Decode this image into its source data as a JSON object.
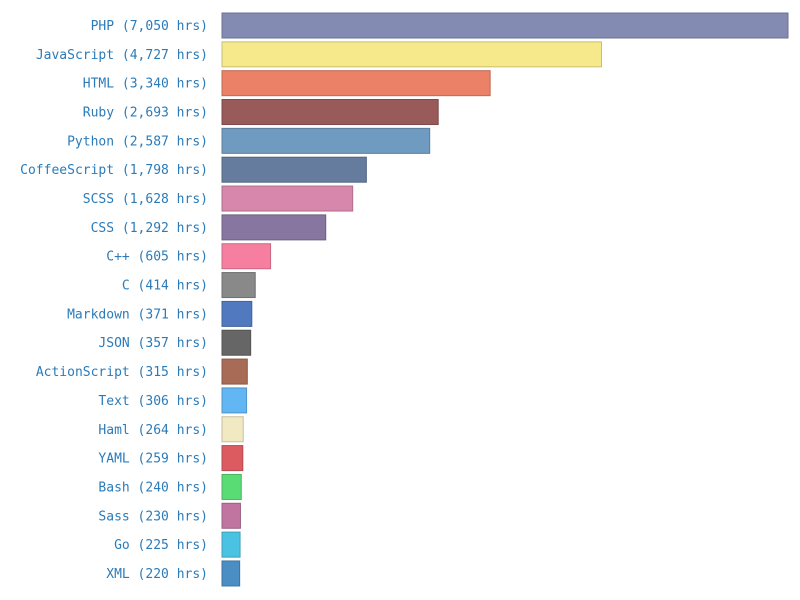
{
  "chart_data": {
    "type": "bar",
    "orientation": "horizontal",
    "title": "",
    "xlabel": "",
    "ylabel": "",
    "unit_label": "hrs",
    "xlim": [
      0,
      7050
    ],
    "grid": false,
    "label_color": "#2b7bb9",
    "categories": [
      "PHP",
      "JavaScript",
      "HTML",
      "Ruby",
      "Python",
      "CoffeeScript",
      "SCSS",
      "CSS",
      "C++",
      "C",
      "Markdown",
      "JSON",
      "ActionScript",
      "Text",
      "Haml",
      "YAML",
      "Bash",
      "Sass",
      "Go",
      "XML"
    ],
    "labels": [
      "PHP (7,050 hrs)",
      "JavaScript (4,727 hrs)",
      "HTML (3,340 hrs)",
      "Ruby (2,693 hrs)",
      "Python (2,587 hrs)",
      "CoffeeScript (1,798 hrs)",
      "SCSS (1,628 hrs)",
      "CSS (1,292 hrs)",
      "C++ (605 hrs)",
      "C (414 hrs)",
      "Markdown (371 hrs)",
      "JSON (357 hrs)",
      "ActionScript (315 hrs)",
      "Text (306 hrs)",
      "Haml (264 hrs)",
      "YAML (259 hrs)",
      "Bash (240 hrs)",
      "Sass (230 hrs)",
      "Go (225 hrs)",
      "XML (220 hrs)"
    ],
    "values": [
      7050,
      4727,
      3340,
      2693,
      2587,
      1798,
      1628,
      1292,
      605,
      414,
      371,
      357,
      315,
      306,
      264,
      259,
      240,
      230,
      225,
      220
    ],
    "colors": [
      "#838bb2",
      "#f5e98b",
      "#eb8166",
      "#995a5a",
      "#6f9bc0",
      "#657c9f",
      "#d687ab",
      "#8776a0",
      "#f67fa0",
      "#898989",
      "#5079bf",
      "#666666",
      "#a86b55",
      "#62b6f4",
      "#f1e9c1",
      "#dc5b60",
      "#5adc75",
      "#c075a0",
      "#4ac3e2",
      "#4b8ec4"
    ]
  }
}
